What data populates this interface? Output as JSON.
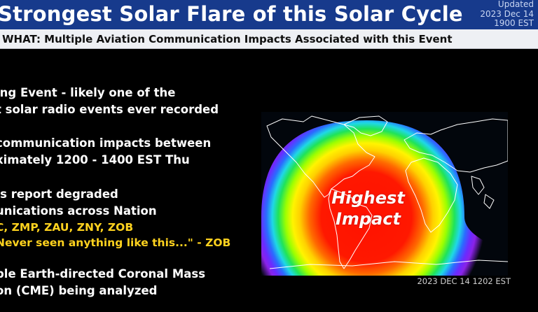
{
  "header": {
    "title": "Strongest Solar Flare of this Solar Cycle",
    "updated_label": "Updated",
    "updated_date": "2023 Dec 14",
    "updated_time": "1900 EST"
  },
  "subheader": {
    "text": "WHAT: Multiple Aviation Communication Impacts Associated with this Event"
  },
  "bullets": [
    {
      "lines": [
        "ing Event - likely one of the",
        "t solar radio events ever recorded"
      ]
    },
    {
      "lines": [
        "communication impacts between",
        "ximately 1200 - 1400 EST Thu"
      ]
    },
    {
      "lines": [
        "Js report degraded",
        "unications across Nation"
      ],
      "accent_lines": [
        "C, ZMP, ZAU, ZNY, ZOB",
        "Never seen anything like this...\" - ZOB"
      ]
    },
    {
      "lines": [
        "ple Earth-directed Coronal Mass",
        "on (CME) being analyzed"
      ]
    }
  ],
  "map": {
    "label_line1": "Highest",
    "label_line2": "Impact",
    "timestamp": "2023 DEC 14 1202 EST"
  },
  "colors": {
    "title_bar": "#173a8c",
    "accent_text": "#ffd21e",
    "impact_core": "#ff1200",
    "impact_edge": "#7a1cff"
  }
}
